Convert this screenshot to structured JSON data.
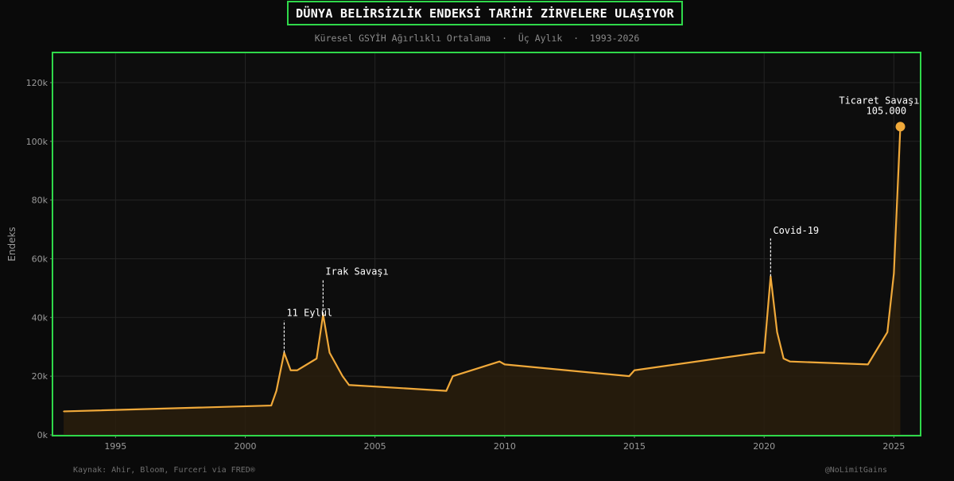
{
  "title": "DÜNYA BELİRSİZLİK ENDEKSİ TARİHİ ZİRVELERE ULAŞIYOR",
  "subtitle": "Küresel GSYİH Ağırlıklı Ortalama  ·  Üç Aylık  ·  1993-2026",
  "source": "Kaynak: Ahir, Bloom, Furceri via FRED®",
  "watermark": "@NoLimitGains",
  "colors": {
    "background": "#0a0a0a",
    "plot_background": "#0d0d0d",
    "frame": "#2fd84a",
    "line": "#f0a93a",
    "fill": "#2a1f0d",
    "grid": "#242424",
    "annotation": "#ffffff"
  },
  "chart_data": {
    "type": "area",
    "title": "DÜNYA BELİRSİZLİK ENDEKSİ TARİHİ ZİRVELERE ULAŞIYOR",
    "subtitle": "Küresel GSYİH Ağırlıklı Ortalama  ·  Üç Aylık  ·  1993-2026",
    "xlabel": "",
    "ylabel": "Endeks",
    "xlim": [
      1992.6,
      2026.0
    ],
    "ylim": [
      0,
      130000
    ],
    "x_ticks": [
      1995,
      2000,
      2005,
      2010,
      2015,
      2020,
      2025
    ],
    "x_tick_labels": [
      "1995",
      "2000",
      "2005",
      "2010",
      "2015",
      "2020",
      "2025"
    ],
    "y_ticks": [
      0,
      20000,
      40000,
      60000,
      80000,
      100000,
      120000
    ],
    "y_tick_labels": [
      "0k",
      "20k",
      "40k",
      "60k",
      "80k",
      "100k",
      "120k"
    ],
    "grid": true,
    "series": [
      {
        "x": [
          1993.0,
          2001.0,
          2001.2,
          2001.5,
          2001.75,
          2002.0,
          2002.75,
          2003.0,
          2003.25,
          2003.75,
          2004.0,
          2007.75,
          2008.0,
          2009.8,
          2010.0,
          2014.8,
          2015.0,
          2019.8,
          2020.0,
          2020.25,
          2020.5,
          2020.75,
          2021.0,
          2024.0,
          2024.75,
          2025.0,
          2025.25
        ],
        "y": [
          8000,
          10000,
          15000,
          28000,
          22000,
          22000,
          26000,
          41000,
          28000,
          20000,
          17000,
          15000,
          20000,
          25000,
          24000,
          20000,
          22000,
          28000,
          28000,
          54000,
          35000,
          26000,
          25000,
          24000,
          35000,
          55000,
          105000
        ]
      }
    ],
    "annotations": [
      {
        "label": "11 Eylül",
        "x": 2001.5,
        "y": 28000,
        "text_y": 40000
      },
      {
        "label": "Irak Savaşı",
        "x": 2003.0,
        "y": 41000,
        "text_y": 54000
      },
      {
        "label": "Covid-19",
        "x": 2020.25,
        "y": 54000,
        "text_y": 68000
      }
    ],
    "highlight": {
      "label": "Ticaret Savaşı",
      "value_label": "105.000",
      "x": 2025.25,
      "y": 105000
    }
  }
}
